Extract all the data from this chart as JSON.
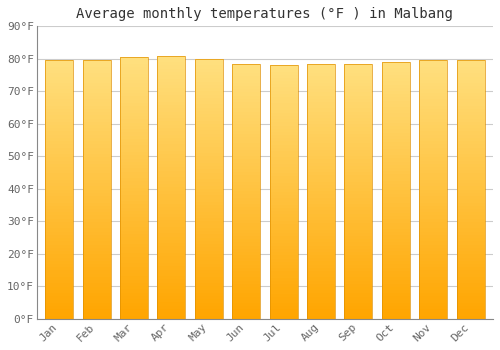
{
  "title": "Average monthly temperatures (°F ) in Malbang",
  "months": [
    "Jan",
    "Feb",
    "Mar",
    "Apr",
    "May",
    "Jun",
    "Jul",
    "Aug",
    "Sep",
    "Oct",
    "Nov",
    "Dec"
  ],
  "values": [
    79.5,
    79.5,
    80.5,
    81.0,
    80.0,
    78.5,
    78.0,
    78.5,
    78.5,
    79.0,
    79.5,
    79.5
  ],
  "bar_color_bottom": "#FFA500",
  "bar_color_top": "#FFE080",
  "bar_edge_color": "#E09000",
  "ylim": [
    0,
    90
  ],
  "yticks": [
    0,
    10,
    20,
    30,
    40,
    50,
    60,
    70,
    80,
    90
  ],
  "ytick_labels": [
    "0°F",
    "10°F",
    "20°F",
    "30°F",
    "40°F",
    "50°F",
    "60°F",
    "70°F",
    "80°F",
    "90°F"
  ],
  "background_color": "#FFFFFF",
  "plot_bg_color": "#FFFFFF",
  "grid_color": "#CCCCCC",
  "title_fontsize": 10,
  "tick_fontsize": 8,
  "tick_color": "#666666",
  "font_family": "monospace",
  "bar_width": 0.75
}
